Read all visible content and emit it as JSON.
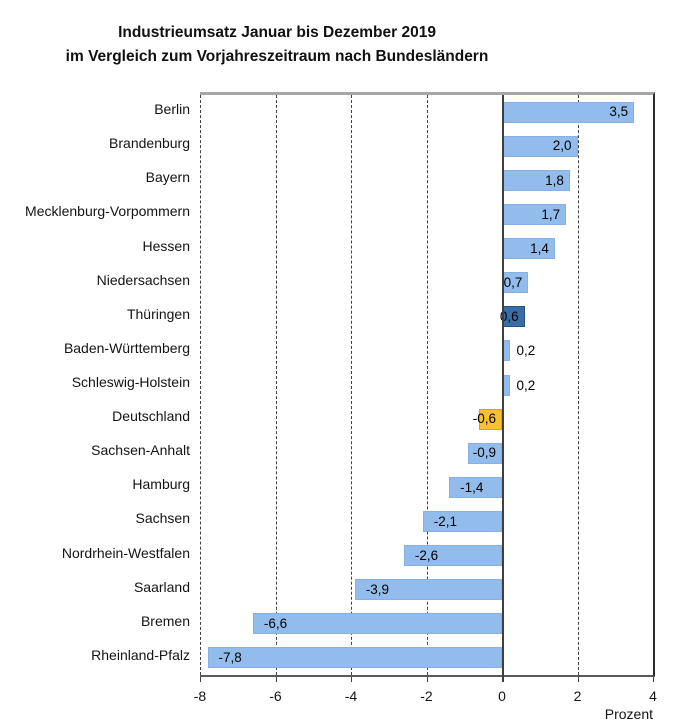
{
  "page": {
    "background": "#ffffff"
  },
  "title": {
    "line1": "Industrieumsatz Januar bis Dezember 2019",
    "line2": "im Vergleich zum Vorjahreszeitraum nach Bundesländern"
  },
  "axis": {
    "min": -8,
    "max": 4,
    "ticks": [
      -8,
      -6,
      -4,
      -2,
      0,
      2,
      4
    ],
    "tick_labels": [
      "-8",
      "-6",
      "-4",
      "-2",
      "0",
      "2",
      "4"
    ],
    "unit_label": "Prozent"
  },
  "colors": {
    "bar_default": "#92bcec",
    "bar_default_border": "#85b0e1",
    "bar_thueringen": "#3a6ca6",
    "bar_thueringen_border": "#27517e",
    "bar_deutschland": "#f7c12f",
    "bar_deutschland_border": "#dba317",
    "gridline": "#404040",
    "zero_line": "#3f3f3f",
    "axis_line": "#595959",
    "plot_top_border": "#a6a6a6",
    "plot_right_border": "#2b2b2b",
    "text": "#111111"
  },
  "chart_data": {
    "type": "bar",
    "orientation": "horizontal",
    "title": "Industrieumsatz Januar bis Dezember 2019 im Vergleich zum Vorjahreszeitraum nach Bundesländern",
    "xlabel": "Prozent",
    "xlim": [
      -8,
      4
    ],
    "grid": "vertical dashed gridlines at ticks, solid line at zero",
    "legend": "none",
    "categories": [
      "Berlin",
      "Brandenburg",
      "Bayern",
      "Mecklenburg-Vorpommern",
      "Hessen",
      "Niedersachsen",
      "Thüringen",
      "Baden-Württemberg",
      "Schleswig-Holstein",
      "Deutschland",
      "Sachsen-Anhalt",
      "Hamburg",
      "Sachsen",
      "Nordrhein-Westfalen",
      "Saarland",
      "Bremen",
      "Rheinland-Pfalz"
    ],
    "values": [
      3.5,
      2.0,
      1.8,
      1.7,
      1.4,
      0.7,
      0.6,
      0.2,
      0.2,
      -0.6,
      -0.9,
      -1.4,
      -2.1,
      -2.6,
      -3.9,
      -6.6,
      -7.8
    ],
    "bars": [
      {
        "category": "Berlin",
        "value": 3.5,
        "label": "3,5",
        "color": "default"
      },
      {
        "category": "Brandenburg",
        "value": 2.0,
        "label": "2,0",
        "color": "default"
      },
      {
        "category": "Bayern",
        "value": 1.8,
        "label": "1,8",
        "color": "default"
      },
      {
        "category": "Mecklenburg-Vorpommern",
        "value": 1.7,
        "label": "1,7",
        "color": "default"
      },
      {
        "category": "Hessen",
        "value": 1.4,
        "label": "1,4",
        "color": "default"
      },
      {
        "category": "Niedersachsen",
        "value": 0.7,
        "label": "0,7",
        "color": "default"
      },
      {
        "category": "Thüringen",
        "value": 0.6,
        "label": "0,6",
        "color": "thueringen"
      },
      {
        "category": "Baden-Württemberg",
        "value": 0.2,
        "label": "0,2",
        "color": "default"
      },
      {
        "category": "Schleswig-Holstein",
        "value": 0.2,
        "label": "0,2",
        "color": "default"
      },
      {
        "category": "Deutschland",
        "value": -0.6,
        "label": "-0,6",
        "color": "deutschland"
      },
      {
        "category": "Sachsen-Anhalt",
        "value": -0.9,
        "label": "-0,9",
        "color": "default"
      },
      {
        "category": "Hamburg",
        "value": -1.4,
        "label": "-1,4",
        "color": "default"
      },
      {
        "category": "Sachsen",
        "value": -2.1,
        "label": "-2,1",
        "color": "default"
      },
      {
        "category": "Nordrhein-Westfalen",
        "value": -2.6,
        "label": "-2,6",
        "color": "default"
      },
      {
        "category": "Saarland",
        "value": -3.9,
        "label": "-3,9",
        "color": "default"
      },
      {
        "category": "Bremen",
        "value": -6.6,
        "label": "-6,6",
        "color": "default"
      },
      {
        "category": "Rheinland-Pfalz",
        "value": -7.8,
        "label": "-7,8",
        "color": "default"
      }
    ]
  }
}
